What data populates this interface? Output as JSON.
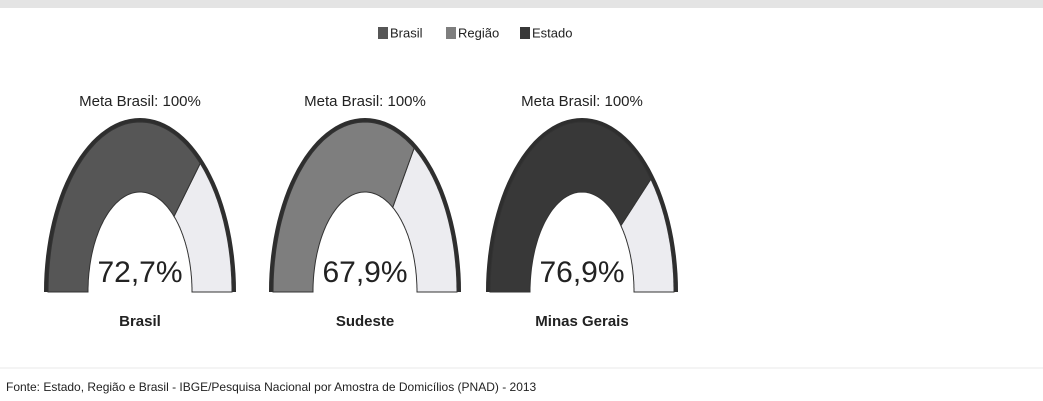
{
  "chart_data": {
    "type": "gauge",
    "legend": [
      {
        "name": "Brasil",
        "color": "#565656"
      },
      {
        "name": "Região",
        "color": "#7e7e7e"
      },
      {
        "name": "Estado",
        "color": "#383838"
      }
    ],
    "target_labels": [
      "Meta Brasil: 100%",
      "Meta Brasil: 100%",
      "Meta Brasil: 100%"
    ],
    "categories": [
      "Brasil",
      "Sudeste",
      "Minas Gerais"
    ],
    "values": [
      72.7,
      67.9,
      76.9
    ],
    "value_labels": [
      "72,7%",
      "67,9%",
      "76,9%"
    ],
    "ylim": [
      0,
      100
    ],
    "source": "Fonte: Estado, Região e Brasil - IBGE/Pesquisa Nacional por Amostra de Domicílios (PNAD) - 2013"
  }
}
